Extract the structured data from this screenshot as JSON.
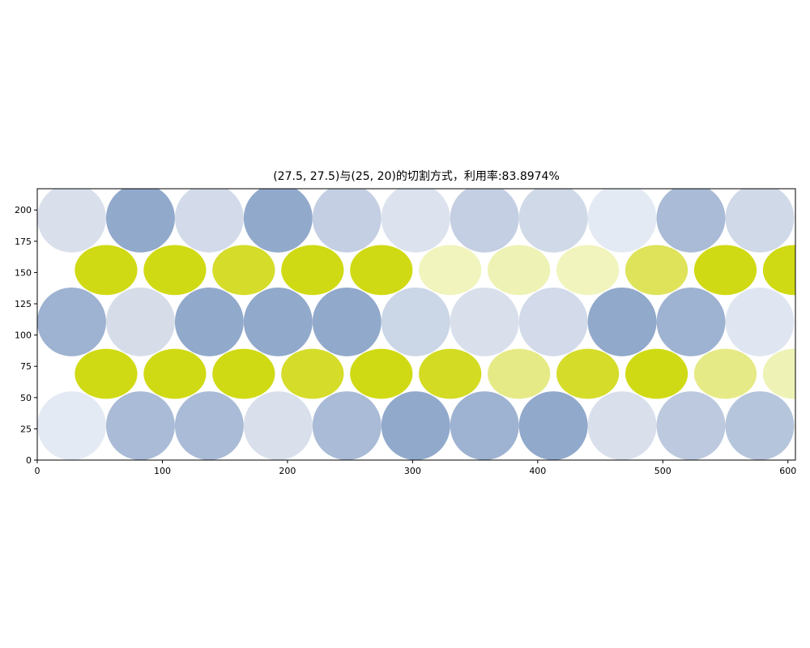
{
  "chart_data": {
    "type": "scatter",
    "title": "(27.5, 27.5)与(25, 20)的切割方式，利用率:83.8974%",
    "xlabel": "",
    "ylabel": "",
    "xlim": [
      0,
      606
    ],
    "ylim": [
      0,
      217
    ],
    "xticks": [
      0,
      100,
      200,
      300,
      400,
      500,
      600
    ],
    "yticks": [
      0,
      25,
      50,
      75,
      100,
      125,
      150,
      175,
      200
    ],
    "grid": false,
    "series": [
      {
        "shape": "circle",
        "rx": 27.5,
        "ry": 27.5,
        "points": [
          {
            "x": 27.5,
            "y": 27.5,
            "color": "#e4eaf3"
          },
          {
            "x": 82.5,
            "y": 27.5,
            "color": "#a9bbd6"
          },
          {
            "x": 137.5,
            "y": 27.5,
            "color": "#a9bbd6"
          },
          {
            "x": 192.5,
            "y": 27.5,
            "color": "#d9e0ec"
          },
          {
            "x": 247.5,
            "y": 27.5,
            "color": "#a9bbd6"
          },
          {
            "x": 302.5,
            "y": 27.5,
            "color": "#91a9cb"
          },
          {
            "x": 357.5,
            "y": 27.5,
            "color": "#9eb2d1"
          },
          {
            "x": 412.5,
            "y": 27.5,
            "color": "#91a9cb"
          },
          {
            "x": 467.5,
            "y": 27.5,
            "color": "#d9e0ec"
          },
          {
            "x": 522.5,
            "y": 27.5,
            "color": "#bcc9de"
          },
          {
            "x": 577.5,
            "y": 27.5,
            "color": "#b5c5dc"
          },
          {
            "x": 27.5,
            "y": 110.5,
            "color": "#9eb2d1"
          },
          {
            "x": 82.5,
            "y": 110.5,
            "color": "#d6dde9"
          },
          {
            "x": 137.5,
            "y": 110.5,
            "color": "#91a9cb"
          },
          {
            "x": 192.5,
            "y": 110.5,
            "color": "#91a9cb"
          },
          {
            "x": 247.5,
            "y": 110.5,
            "color": "#91a9cb"
          },
          {
            "x": 302.5,
            "y": 110.5,
            "color": "#cbd6e6"
          },
          {
            "x": 357.5,
            "y": 110.5,
            "color": "#d9e0ec"
          },
          {
            "x": 412.5,
            "y": 110.5,
            "color": "#d3dbea"
          },
          {
            "x": 467.5,
            "y": 110.5,
            "color": "#91a9cb"
          },
          {
            "x": 522.5,
            "y": 110.5,
            "color": "#9eb2d1"
          },
          {
            "x": 577.5,
            "y": 110.5,
            "color": "#e0e6f1"
          },
          {
            "x": 27.5,
            "y": 193.5,
            "color": "#d9e0ec"
          },
          {
            "x": 82.5,
            "y": 193.5,
            "color": "#91a9cb"
          },
          {
            "x": 137.5,
            "y": 193.5,
            "color": "#d3dbea"
          },
          {
            "x": 192.5,
            "y": 193.5,
            "color": "#91a9cb"
          },
          {
            "x": 247.5,
            "y": 193.5,
            "color": "#c4cfe3"
          },
          {
            "x": 302.5,
            "y": 193.5,
            "color": "#dce3ee"
          },
          {
            "x": 357.5,
            "y": 193.5,
            "color": "#c4cfe3"
          },
          {
            "x": 412.5,
            "y": 193.5,
            "color": "#d0d9e7"
          },
          {
            "x": 467.5,
            "y": 193.5,
            "color": "#e4eaf3"
          },
          {
            "x": 522.5,
            "y": 193.5,
            "color": "#a9bbd6"
          },
          {
            "x": 577.5,
            "y": 193.5,
            "color": "#d0d9e7"
          }
        ]
      },
      {
        "shape": "ellipse",
        "rx": 25,
        "ry": 20,
        "points": [
          {
            "x": 55,
            "y": 69,
            "color": "#d0da14"
          },
          {
            "x": 110,
            "y": 69,
            "color": "#d0da14"
          },
          {
            "x": 165,
            "y": 69,
            "color": "#d0da14"
          },
          {
            "x": 220,
            "y": 69,
            "color": "#d5dc2a"
          },
          {
            "x": 275,
            "y": 69,
            "color": "#d0da14"
          },
          {
            "x": 330,
            "y": 69,
            "color": "#d3db22"
          },
          {
            "x": 385,
            "y": 69,
            "color": "#e6ea86"
          },
          {
            "x": 440,
            "y": 69,
            "color": "#d5dc2a"
          },
          {
            "x": 495,
            "y": 69,
            "color": "#d0da14"
          },
          {
            "x": 550,
            "y": 69,
            "color": "#e6ea86"
          },
          {
            "x": 605,
            "y": 69,
            "color": "#eef2b4"
          },
          {
            "x": 55,
            "y": 152,
            "color": "#d0da14"
          },
          {
            "x": 110,
            "y": 152,
            "color": "#d0da14"
          },
          {
            "x": 165,
            "y": 152,
            "color": "#d5dc2a"
          },
          {
            "x": 220,
            "y": 152,
            "color": "#d0da14"
          },
          {
            "x": 275,
            "y": 152,
            "color": "#d0da14"
          },
          {
            "x": 330,
            "y": 152,
            "color": "#f1f4bc"
          },
          {
            "x": 385,
            "y": 152,
            "color": "#eef2b4"
          },
          {
            "x": 440,
            "y": 152,
            "color": "#f1f4bc"
          },
          {
            "x": 495,
            "y": 152,
            "color": "#dee35a"
          },
          {
            "x": 550,
            "y": 152,
            "color": "#d0da14"
          },
          {
            "x": 605,
            "y": 152,
            "color": "#d0da14"
          }
        ]
      }
    ]
  }
}
